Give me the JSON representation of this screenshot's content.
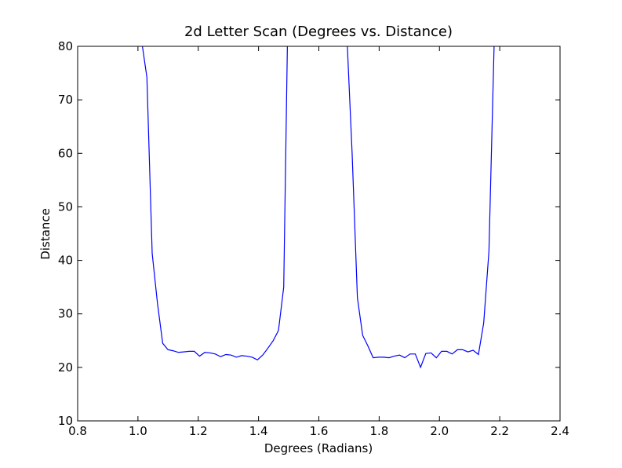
{
  "chart_data": {
    "type": "line",
    "title": "2d Letter Scan (Degrees vs. Distance)",
    "x_label": "Degrees (Radians)",
    "y_label": "Distance",
    "x": [
      1.0123,
      1.0297,
      1.0472,
      1.0647,
      1.0821,
      1.0996,
      1.117,
      1.1345,
      1.1519,
      1.1694,
      1.1868,
      1.2043,
      1.2217,
      1.2392,
      1.2566,
      1.2741,
      1.2915,
      1.309,
      1.3265,
      1.3439,
      1.3614,
      1.3788,
      1.3963,
      1.4137,
      1.4312,
      1.4486,
      1.4661,
      1.4835,
      1.501,
      1.5184,
      1.5359,
      1.5533,
      1.5708,
      1.5882,
      1.6057,
      1.6232,
      1.6406,
      1.6581,
      1.6755,
      1.693,
      1.7104,
      1.7279,
      1.7453,
      1.7628,
      1.7802,
      1.7977,
      1.8151,
      1.8326,
      1.85,
      1.8675,
      1.885,
      1.9024,
      1.9199,
      1.9373,
      1.9548,
      1.9722,
      1.9897,
      2.0071,
      2.0246,
      2.042,
      2.0595,
      2.0769,
      2.0944,
      2.1118,
      2.1293,
      2.1468,
      2.1642,
      2.1817
    ],
    "series": [
      {
        "color": "#0000ff",
        "values": [
          81,
          74.2,
          41.3,
          32,
          24.5,
          23.3,
          23.1,
          22.8,
          22.9,
          23.0,
          23.0,
          22.1,
          22.8,
          22.7,
          22.5,
          22.0,
          22.4,
          22.3,
          21.9,
          22.2,
          22.1,
          21.9,
          21.4,
          22.3,
          23.6,
          25.0,
          26.9,
          35.0,
          100,
          null,
          null,
          null,
          null,
          null,
          null,
          null,
          null,
          null,
          null,
          82,
          60,
          33,
          26,
          24,
          21.8,
          21.9,
          21.9,
          21.8,
          22.1,
          22.3,
          21.8,
          22.5,
          22.5,
          20.0,
          22.6,
          22.7,
          21.8,
          23.0,
          23.0,
          22.5,
          23.3,
          23.3,
          22.9,
          23.2,
          22.4,
          28.3,
          41.7,
          81
        ]
      }
    ],
    "xlim": [
      0.8,
      2.4
    ],
    "ylim": [
      10,
      80
    ],
    "xticks": [
      0.8,
      {
        "value": 1,
        "label": "1.0"
      },
      1.2,
      1.4,
      1.6,
      1.8,
      {
        "value": 2,
        "label": "2.0"
      },
      2.2,
      2.4
    ],
    "yticks": [
      10,
      20,
      30,
      40,
      50,
      60,
      70,
      80
    ],
    "grid": false
  }
}
